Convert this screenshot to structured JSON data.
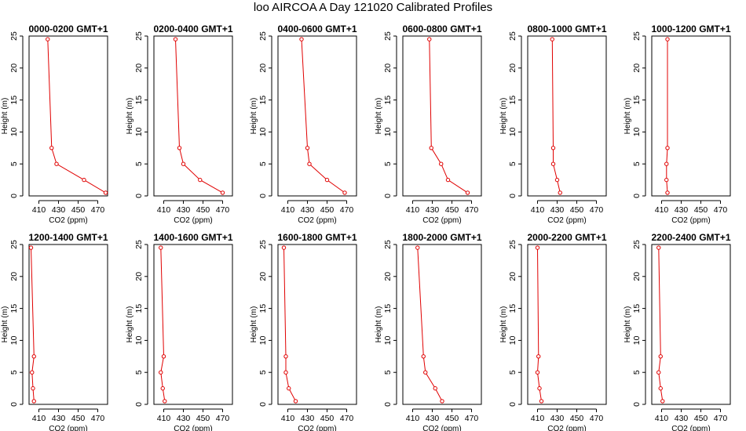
{
  "title": "loo AIRCOA A  Day 121020  Calibrated Profiles",
  "chart_data": {
    "type": "line",
    "xlabel": "CO2 (ppm)",
    "ylabel": "Height (m)",
    "xlim": [
      400,
      480
    ],
    "ylim": [
      0,
      25
    ],
    "xticks": [
      "410",
      "430",
      "450",
      "470"
    ],
    "yticks": [
      "0",
      "5",
      "10",
      "15",
      "20",
      "25"
    ],
    "line_color": "#e00000",
    "grid": false,
    "heights": [
      24.5,
      7.5,
      5,
      2.5,
      0.5
    ],
    "panels": [
      {
        "title": "0000-0200 GMT+1",
        "values": [
          419,
          423,
          428,
          456,
          478
        ]
      },
      {
        "title": "0200-0400 GMT+1",
        "values": [
          422,
          426,
          430,
          447,
          470
        ]
      },
      {
        "title": "0400-0600 GMT+1",
        "values": [
          424,
          430,
          432,
          450,
          468
        ]
      },
      {
        "title": "0600-0800 GMT+1",
        "values": [
          427,
          429,
          439,
          446,
          466
        ]
      },
      {
        "title": "0800-1000 GMT+1",
        "values": [
          425,
          426,
          426,
          430,
          433
        ]
      },
      {
        "title": "1000-1200 GMT+1",
        "values": [
          416,
          416,
          415,
          415,
          416
        ]
      },
      {
        "title": "1200-1400 GMT+1",
        "values": [
          402,
          405,
          403,
          404,
          405
        ]
      },
      {
        "title": "1400-1600 GMT+1",
        "values": [
          407,
          410,
          407,
          409,
          411
        ]
      },
      {
        "title": "1600-1800 GMT+1",
        "values": [
          406,
          408,
          408,
          411,
          418
        ]
      },
      {
        "title": "1800-2000 GMT+1",
        "values": [
          415,
          421,
          423,
          433,
          440
        ]
      },
      {
        "title": "2000-2200 GMT+1",
        "values": [
          410,
          411,
          410,
          412,
          414
        ]
      },
      {
        "title": "2200-2400 GMT+1",
        "values": [
          407,
          409,
          407,
          409,
          411
        ]
      }
    ]
  }
}
